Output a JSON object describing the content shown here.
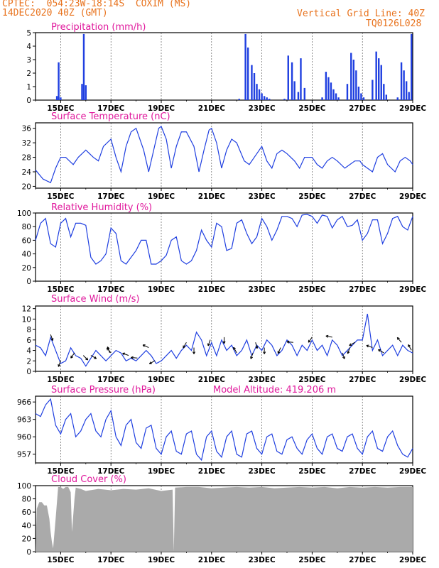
{
  "header": {
    "line1": "CPTEC:  054:23W-18:14S  COXIM (MS)",
    "line2": "14DEC2020 40Z (GMT)",
    "right1": "Vertical Grid Line: 40Z",
    "right2": "TQ0126L028"
  },
  "colors": {
    "header": "#e8731e",
    "title": "#e0189c",
    "line": "#1f3fe0",
    "cloud": "#aaaaaa"
  },
  "chart_data": [
    {
      "type": "bar",
      "title": "Precipitation (mm/h)",
      "x_unit": "days since 14DEC",
      "xlim": [
        0,
        15
      ],
      "ylim": [
        0,
        5
      ],
      "yticks": [
        0,
        1,
        2,
        3,
        4,
        5
      ],
      "xticks": [
        "15DEC",
        "17DEC",
        "19DEC",
        "21DEC",
        "23DEC",
        "25DEC",
        "27DEC",
        "29DEC"
      ],
      "x": [
        0.85,
        0.92,
        1.0,
        1.85,
        1.92,
        2.0,
        8.1,
        8.35,
        8.45,
        8.6,
        8.7,
        8.8,
        8.9,
        9.0,
        9.1,
        9.2,
        9.3,
        9.9,
        10.05,
        10.2,
        10.3,
        10.45,
        10.55,
        10.7,
        11.4,
        11.55,
        11.65,
        11.75,
        11.85,
        11.95,
        12.05,
        12.4,
        12.55,
        12.65,
        12.75,
        12.85,
        12.95,
        13.05,
        13.4,
        13.55,
        13.65,
        13.75,
        13.85,
        13.95,
        14.4,
        14.55,
        14.65,
        14.75,
        14.85,
        14.95
      ],
      "values": [
        0.3,
        2.8,
        0.2,
        1.2,
        4.9,
        1.1,
        0.1,
        4.9,
        3.9,
        2.6,
        2.0,
        1.2,
        0.8,
        0.5,
        0.3,
        0.2,
        0.1,
        0.1,
        3.3,
        2.8,
        1.4,
        0.6,
        3.1,
        0.9,
        0.2,
        2.1,
        1.7,
        1.3,
        0.8,
        0.5,
        0.2,
        1.2,
        3.5,
        3.0,
        2.2,
        1.0,
        0.5,
        0.2,
        1.5,
        3.6,
        3.1,
        2.6,
        1.2,
        0.4,
        0.2,
        2.8,
        2.2,
        1.4,
        0.6,
        4.9
      ]
    },
    {
      "type": "line",
      "title": "Surface Temperature (nC)",
      "x_unit": "days since 14DEC",
      "xlim": [
        0,
        15
      ],
      "ylim": [
        19.5,
        37.5
      ],
      "yticks": [
        20,
        24,
        28,
        32,
        36
      ],
      "xticks": [
        "15DEC",
        "17DEC",
        "19DEC",
        "21DEC",
        "23DEC",
        "25DEC",
        "27DEC",
        "29DEC"
      ],
      "x": [
        0,
        0.3,
        0.6,
        0.8,
        1.0,
        1.2,
        1.5,
        1.7,
        2.0,
        2.3,
        2.5,
        2.7,
        3.0,
        3.2,
        3.4,
        3.6,
        3.8,
        4.0,
        4.3,
        4.5,
        4.7,
        4.9,
        5.0,
        5.2,
        5.4,
        5.6,
        5.8,
        6.0,
        6.3,
        6.5,
        6.7,
        6.9,
        7.0,
        7.2,
        7.4,
        7.6,
        7.8,
        8.0,
        8.3,
        8.5,
        8.7,
        8.9,
        9.0,
        9.2,
        9.4,
        9.6,
        9.8,
        10.0,
        10.3,
        10.5,
        10.7,
        10.9,
        11.0,
        11.2,
        11.4,
        11.6,
        11.8,
        12.0,
        12.3,
        12.5,
        12.7,
        12.9,
        13.0,
        13.2,
        13.4,
        13.6,
        13.8,
        14.0,
        14.3,
        14.5,
        14.7,
        14.9,
        15.0
      ],
      "y": [
        24.5,
        22,
        21,
        25,
        28,
        28,
        26,
        28,
        30,
        28,
        27,
        31,
        33,
        28,
        24,
        31,
        35,
        36,
        30,
        24,
        30,
        36,
        36.5,
        33,
        25,
        31,
        35,
        35,
        31,
        24,
        30,
        35.5,
        36,
        32,
        25,
        30,
        33,
        32,
        27,
        26,
        28,
        30,
        31,
        27,
        25,
        29,
        30,
        29,
        27,
        25,
        28,
        28,
        28,
        26,
        25,
        27,
        28,
        27,
        25,
        26,
        27,
        27,
        26,
        25,
        24,
        28,
        29,
        26,
        24,
        27,
        28,
        27,
        26
      ]
    },
    {
      "type": "line",
      "title": "Relative Humidity (%)",
      "x_unit": "days since 14DEC",
      "xlim": [
        0,
        15
      ],
      "ylim": [
        0,
        100
      ],
      "yticks": [
        0,
        20,
        40,
        60,
        80,
        100
      ],
      "xticks": [
        "15DEC",
        "17DEC",
        "19DEC",
        "21DEC",
        "23DEC",
        "25DEC",
        "27DEC",
        "29DEC"
      ],
      "x": [
        0,
        0.2,
        0.4,
        0.6,
        0.8,
        1.0,
        1.2,
        1.4,
        1.6,
        1.8,
        2.0,
        2.2,
        2.4,
        2.6,
        2.8,
        3.0,
        3.2,
        3.4,
        3.6,
        3.8,
        4.0,
        4.2,
        4.4,
        4.6,
        4.8,
        5.0,
        5.2,
        5.4,
        5.6,
        5.8,
        6.0,
        6.2,
        6.4,
        6.6,
        6.8,
        7.0,
        7.2,
        7.4,
        7.6,
        7.8,
        8.0,
        8.2,
        8.4,
        8.6,
        8.8,
        9.0,
        9.2,
        9.4,
        9.6,
        9.8,
        10.0,
        10.2,
        10.4,
        10.6,
        10.8,
        11.0,
        11.2,
        11.4,
        11.6,
        11.8,
        12.0,
        12.2,
        12.4,
        12.6,
        12.8,
        13.0,
        13.2,
        13.4,
        13.6,
        13.8,
        14.0,
        14.2,
        14.4,
        14.6,
        14.8,
        15.0
      ],
      "y": [
        60,
        85,
        92,
        55,
        50,
        85,
        92,
        65,
        85,
        85,
        82,
        35,
        25,
        30,
        40,
        78,
        70,
        30,
        25,
        35,
        45,
        60,
        60,
        25,
        25,
        30,
        38,
        60,
        65,
        30,
        25,
        30,
        45,
        75,
        60,
        50,
        85,
        80,
        45,
        48,
        85,
        90,
        70,
        55,
        65,
        92,
        80,
        60,
        75,
        95,
        95,
        92,
        80,
        97,
        98,
        95,
        85,
        97,
        95,
        78,
        90,
        95,
        80,
        82,
        90,
        60,
        70,
        90,
        90,
        55,
        70,
        92,
        95,
        80,
        75,
        95
      ]
    },
    {
      "type": "line",
      "title": "Surface Wind (m/s)",
      "x_unit": "days since 14DEC",
      "xlim": [
        0,
        15
      ],
      "ylim": [
        0,
        12.5
      ],
      "yticks": [
        0,
        2,
        4,
        6,
        8,
        10,
        12
      ],
      "xticks": [
        "15DEC",
        "17DEC",
        "19DEC",
        "21DEC",
        "23DEC",
        "25DEC",
        "27DEC",
        "29DEC"
      ],
      "x": [
        0,
        0.2,
        0.4,
        0.6,
        0.8,
        1.0,
        1.2,
        1.4,
        1.6,
        1.8,
        2.0,
        2.2,
        2.4,
        2.6,
        2.8,
        3.0,
        3.2,
        3.4,
        3.6,
        3.8,
        4.0,
        4.2,
        4.4,
        4.6,
        4.8,
        5.0,
        5.2,
        5.4,
        5.6,
        5.8,
        6.0,
        6.2,
        6.4,
        6.6,
        6.8,
        7.0,
        7.2,
        7.4,
        7.6,
        7.8,
        8.0,
        8.2,
        8.4,
        8.6,
        8.8,
        9.0,
        9.2,
        9.4,
        9.6,
        9.8,
        10.0,
        10.2,
        10.4,
        10.6,
        10.8,
        11.0,
        11.2,
        11.4,
        11.6,
        11.8,
        12.0,
        12.2,
        12.4,
        12.6,
        12.8,
        13.0,
        13.2,
        13.4,
        13.6,
        13.8,
        14.0,
        14.2,
        14.4,
        14.6,
        14.8,
        15.0
      ],
      "y": [
        5,
        4.5,
        3,
        6.5,
        4,
        1.5,
        2,
        4.5,
        3,
        2.5,
        1,
        2.5,
        4,
        3,
        2,
        3,
        4,
        3.5,
        2,
        2.5,
        2,
        3,
        4,
        3,
        1.5,
        2,
        3,
        4,
        2.5,
        4,
        5,
        4,
        7.5,
        6,
        3,
        5.5,
        3,
        6,
        4,
        5,
        3,
        4,
        6,
        3,
        5,
        4,
        6,
        5,
        3,
        4,
        6,
        5,
        3,
        5,
        4,
        6,
        4,
        5,
        3,
        6,
        5,
        3,
        4,
        5,
        6,
        6,
        11,
        4,
        6,
        3,
        4,
        5,
        3,
        5,
        4,
        3.5
      ],
      "barbs": [
        {
          "x": 0.6,
          "dir": 160
        },
        {
          "x": 1.0,
          "dir": 200
        },
        {
          "x": 1.55,
          "dir": 215
        },
        {
          "x": 1.9,
          "dir": 135
        },
        {
          "x": 2.2,
          "dir": 120
        },
        {
          "x": 2.95,
          "dir": 340
        },
        {
          "x": 3.0,
          "dir": 320
        },
        {
          "x": 3.7,
          "dir": 290
        },
        {
          "x": 4.05,
          "dir": 275
        },
        {
          "x": 4.5,
          "dir": 295
        },
        {
          "x": 4.75,
          "dir": 240
        },
        {
          "x": 6.0,
          "dir": 210
        },
        {
          "x": 6.3,
          "dir": 180
        },
        {
          "x": 6.95,
          "dir": 200
        },
        {
          "x": 7.5,
          "dir": 180
        },
        {
          "x": 8.0,
          "dir": 330
        },
        {
          "x": 8.65,
          "dir": 200
        },
        {
          "x": 8.75,
          "dir": 165
        },
        {
          "x": 9.1,
          "dir": 180
        },
        {
          "x": 9.75,
          "dir": 205
        },
        {
          "x": 10.25,
          "dir": 275
        },
        {
          "x": 11.0,
          "dir": 215
        },
        {
          "x": 11.8,
          "dir": 280
        },
        {
          "x": 12.2,
          "dir": 160
        },
        {
          "x": 12.5,
          "dir": 200
        },
        {
          "x": 12.7,
          "dir": 240
        },
        {
          "x": 13.4,
          "dir": 290
        },
        {
          "x": 13.85,
          "dir": 300
        },
        {
          "x": 14.55,
          "dir": 320
        },
        {
          "x": 14.95,
          "dir": 330
        }
      ]
    },
    {
      "type": "line",
      "title": "Surface Pressure (hPa)",
      "annotation": "Model Altitude: 419.206 m",
      "x_unit": "days since 14DEC",
      "xlim": [
        0,
        15
      ],
      "ylim": [
        955.5,
        967
      ],
      "yticks": [
        957,
        960,
        963,
        966
      ],
      "xticks": [
        "15DEC",
        "17DEC",
        "19DEC",
        "21DEC",
        "23DEC",
        "25DEC",
        "27DEC",
        "29DEC"
      ],
      "x": [
        0,
        0.2,
        0.4,
        0.6,
        0.8,
        1.0,
        1.2,
        1.4,
        1.6,
        1.8,
        2.0,
        2.2,
        2.4,
        2.6,
        2.8,
        3.0,
        3.2,
        3.4,
        3.6,
        3.8,
        4.0,
        4.2,
        4.4,
        4.6,
        4.8,
        5.0,
        5.2,
        5.4,
        5.6,
        5.8,
        6.0,
        6.2,
        6.4,
        6.6,
        6.8,
        7.0,
        7.2,
        7.4,
        7.6,
        7.8,
        8.0,
        8.2,
        8.4,
        8.6,
        8.8,
        9.0,
        9.2,
        9.4,
        9.6,
        9.8,
        10.0,
        10.2,
        10.4,
        10.6,
        10.8,
        11.0,
        11.2,
        11.4,
        11.6,
        11.8,
        12.0,
        12.2,
        12.4,
        12.6,
        12.8,
        13.0,
        13.2,
        13.4,
        13.6,
        13.8,
        14.0,
        14.2,
        14.4,
        14.6,
        14.8,
        15.0
      ],
      "y": [
        964,
        963.5,
        965.5,
        966.5,
        962,
        960.5,
        963,
        964,
        960,
        961,
        963,
        964,
        961,
        960,
        963,
        964.5,
        960,
        958.5,
        962,
        963,
        959,
        958,
        961.5,
        962,
        958,
        957,
        960,
        961,
        957.5,
        957,
        960.5,
        961,
        957,
        956,
        960,
        961,
        957.5,
        956.5,
        960,
        961,
        957,
        956.5,
        960.5,
        961,
        958,
        957,
        960,
        960.5,
        957.5,
        957,
        959.5,
        960,
        958,
        957,
        959.5,
        960.5,
        958,
        957,
        960,
        960.5,
        958,
        957.5,
        960,
        960.5,
        958,
        957,
        960,
        961,
        958,
        957.5,
        960,
        961,
        958.5,
        957,
        956.5,
        958
      ]
    },
    {
      "type": "area",
      "title": "Cloud Cover (%)",
      "x_unit": "days since 14DEC",
      "xlim": [
        0,
        15
      ],
      "ylim": [
        0,
        100
      ],
      "yticks": [
        0,
        20,
        40,
        60,
        80,
        100
      ],
      "xticks": [
        "15DEC",
        "17DEC",
        "19DEC",
        "21DEC",
        "23DEC",
        "25DEC",
        "27DEC",
        "29DEC"
      ],
      "x": [
        0,
        0.05,
        0.15,
        0.25,
        0.35,
        0.45,
        0.55,
        0.6,
        0.65,
        0.7,
        0.8,
        0.9,
        1.0,
        1.1,
        1.2,
        1.3,
        1.4,
        1.45,
        1.55,
        1.6,
        1.7,
        1.8,
        2.0,
        2.5,
        3.0,
        3.5,
        4.0,
        4.5,
        5.0,
        5.45,
        5.5,
        5.55,
        6.0,
        6.5,
        7.0,
        7.5,
        8.0,
        8.5,
        9.0,
        9.5,
        10.0,
        10.5,
        11.0,
        11.5,
        12.0,
        12.5,
        13.0,
        13.5,
        14.0,
        14.5,
        15.0
      ],
      "y": [
        0,
        65,
        75,
        75,
        70,
        70,
        50,
        30,
        15,
        5,
        50,
        98,
        98,
        95,
        98,
        98,
        90,
        30,
        80,
        97,
        96,
        95,
        92,
        95,
        93,
        95,
        94,
        96,
        92,
        94,
        0,
        97,
        98,
        98,
        96,
        97,
        98,
        97,
        98,
        96,
        97,
        98,
        97,
        98,
        96,
        98,
        97,
        98,
        97,
        98,
        98
      ]
    }
  ]
}
